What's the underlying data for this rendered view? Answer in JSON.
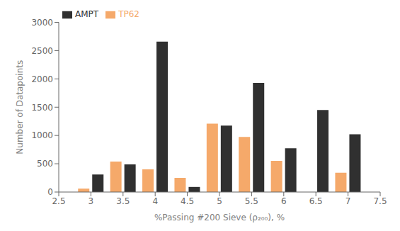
{
  "chart_data": {
    "type": "bar",
    "x": [
      3.0,
      3.5,
      4.0,
      4.5,
      5.0,
      5.5,
      6.0,
      6.5,
      7.0
    ],
    "series": [
      {
        "name": "TP62",
        "color": "#F5A96A",
        "values": [
          60,
          540,
          400,
          250,
          1210,
          975,
          550,
          0,
          340
        ]
      },
      {
        "name": "AMPT",
        "color": "#303030",
        "values": [
          310,
          490,
          2660,
          90,
          1175,
          1930,
          775,
          1450,
          1020
        ]
      }
    ],
    "xlabel": "%Passing #200 Sieve (ρ₂₀₀), %",
    "ylabel": "Number of Datapoints",
    "xlim": [
      2.5,
      7.5
    ],
    "ylim": [
      0,
      3000
    ],
    "xticks": [
      2.5,
      3.0,
      3.5,
      4.0,
      4.5,
      5.0,
      5.5,
      6.0,
      6.5,
      7.0,
      7.5
    ],
    "yticks": [
      0,
      500,
      1000,
      1500,
      2000,
      2500,
      3000
    ],
    "legend": "upper left",
    "grid": false
  }
}
